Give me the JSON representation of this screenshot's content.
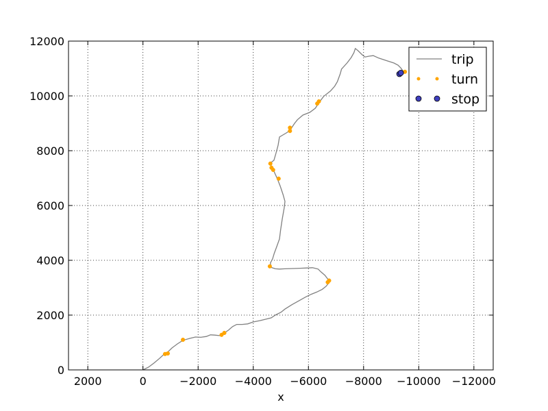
{
  "chart_data": {
    "type": "scatter",
    "title": "",
    "xlabel": "x",
    "ylabel": "",
    "xlim": [
      2700,
      -12700
    ],
    "ylim": [
      0,
      12000
    ],
    "x_ticks": [
      2000,
      0,
      -2000,
      -4000,
      -6000,
      -8000,
      -10000,
      -12000
    ],
    "x_tick_labels": [
      "2000",
      "0",
      "−2000",
      "−4000",
      "−6000",
      "−8000",
      "−10000",
      "−12000"
    ],
    "y_ticks": [
      0,
      2000,
      4000,
      6000,
      8000,
      10000,
      12000
    ],
    "y_tick_labels": [
      "0",
      "2000",
      "4000",
      "6000",
      "8000",
      "10000",
      "12000"
    ],
    "grid": true,
    "legend_position": "top-right",
    "series": [
      {
        "name": "trip",
        "kind": "line",
        "color": "#808080",
        "points": [
          [
            0,
            0
          ],
          [
            -200,
            100
          ],
          [
            -400,
            250
          ],
          [
            -600,
            420
          ],
          [
            -750,
            560
          ],
          [
            -900,
            650
          ],
          [
            -1050,
            800
          ],
          [
            -1250,
            950
          ],
          [
            -1450,
            1080
          ],
          [
            -1700,
            1150
          ],
          [
            -1900,
            1200
          ],
          [
            -2100,
            1190
          ],
          [
            -2300,
            1220
          ],
          [
            -2450,
            1280
          ],
          [
            -2600,
            1270
          ],
          [
            -2800,
            1250
          ],
          [
            -2950,
            1350
          ],
          [
            -3100,
            1450
          ],
          [
            -3250,
            1580
          ],
          [
            -3400,
            1660
          ],
          [
            -3600,
            1660
          ],
          [
            -3800,
            1680
          ],
          [
            -4000,
            1750
          ],
          [
            -4250,
            1800
          ],
          [
            -4450,
            1850
          ],
          [
            -4650,
            1900
          ],
          [
            -4800,
            2000
          ],
          [
            -5000,
            2100
          ],
          [
            -5150,
            2220
          ],
          [
            -5400,
            2380
          ],
          [
            -5650,
            2520
          ],
          [
            -5900,
            2660
          ],
          [
            -6100,
            2760
          ],
          [
            -6300,
            2840
          ],
          [
            -6500,
            2940
          ],
          [
            -6650,
            3060
          ],
          [
            -6750,
            3200
          ],
          [
            -6700,
            3320
          ],
          [
            -6600,
            3450
          ],
          [
            -6450,
            3580
          ],
          [
            -6350,
            3680
          ],
          [
            -6150,
            3730
          ],
          [
            -5950,
            3720
          ],
          [
            -5700,
            3710
          ],
          [
            -5450,
            3700
          ],
          [
            -5150,
            3690
          ],
          [
            -4950,
            3680
          ],
          [
            -4800,
            3690
          ],
          [
            -4650,
            3740
          ],
          [
            -4620,
            3900
          ],
          [
            -4700,
            4050
          ],
          [
            -4760,
            4250
          ],
          [
            -4850,
            4500
          ],
          [
            -4950,
            4780
          ],
          [
            -4990,
            5100
          ],
          [
            -5050,
            5500
          ],
          [
            -5120,
            5900
          ],
          [
            -5150,
            6150
          ],
          [
            -5080,
            6400
          ],
          [
            -4980,
            6700
          ],
          [
            -4870,
            6980
          ],
          [
            -4750,
            7250
          ],
          [
            -4680,
            7350
          ],
          [
            -4620,
            7550
          ],
          [
            -4750,
            7650
          ],
          [
            -4820,
            7900
          ],
          [
            -4900,
            8200
          ],
          [
            -4950,
            8500
          ],
          [
            -5200,
            8650
          ],
          [
            -5350,
            8750
          ],
          [
            -5400,
            8850
          ],
          [
            -5500,
            9000
          ],
          [
            -5600,
            9130
          ],
          [
            -5800,
            9300
          ],
          [
            -6050,
            9400
          ],
          [
            -6250,
            9550
          ],
          [
            -6400,
            9780
          ],
          [
            -6550,
            9980
          ],
          [
            -6800,
            10180
          ],
          [
            -6950,
            10350
          ],
          [
            -7050,
            10520
          ],
          [
            -7150,
            10800
          ],
          [
            -7200,
            10980
          ],
          [
            -7400,
            11200
          ],
          [
            -7550,
            11400
          ],
          [
            -7650,
            11580
          ],
          [
            -7700,
            11730
          ],
          [
            -7800,
            11650
          ],
          [
            -7950,
            11500
          ],
          [
            -8050,
            11420
          ],
          [
            -8200,
            11450
          ],
          [
            -8350,
            11470
          ],
          [
            -8550,
            11380
          ],
          [
            -8850,
            11280
          ],
          [
            -9100,
            11200
          ],
          [
            -9250,
            11120
          ],
          [
            -9350,
            11020
          ],
          [
            -9450,
            10880
          ],
          [
            -9450,
            10830
          ],
          [
            -9300,
            10830
          ]
        ]
      },
      {
        "name": "turn",
        "kind": "points",
        "color": "#ffa500",
        "points": [
          [
            -800,
            580
          ],
          [
            -900,
            600
          ],
          [
            -1450,
            1100
          ],
          [
            -2850,
            1280
          ],
          [
            -2950,
            1350
          ],
          [
            -4600,
            3780
          ],
          [
            -6700,
            3200
          ],
          [
            -6750,
            3260
          ],
          [
            -4920,
            6980
          ],
          [
            -4720,
            7300
          ],
          [
            -4660,
            7380
          ],
          [
            -4620,
            7530
          ],
          [
            -5330,
            8720
          ],
          [
            -5330,
            8840
          ],
          [
            -6320,
            9720
          ],
          [
            -6380,
            9800
          ],
          [
            -9500,
            10880
          ]
        ]
      },
      {
        "name": "stop",
        "kind": "markers",
        "color": "#3f3fbf",
        "points": [
          [
            -9300,
            10800
          ],
          [
            -9350,
            10840
          ]
        ]
      }
    ]
  }
}
